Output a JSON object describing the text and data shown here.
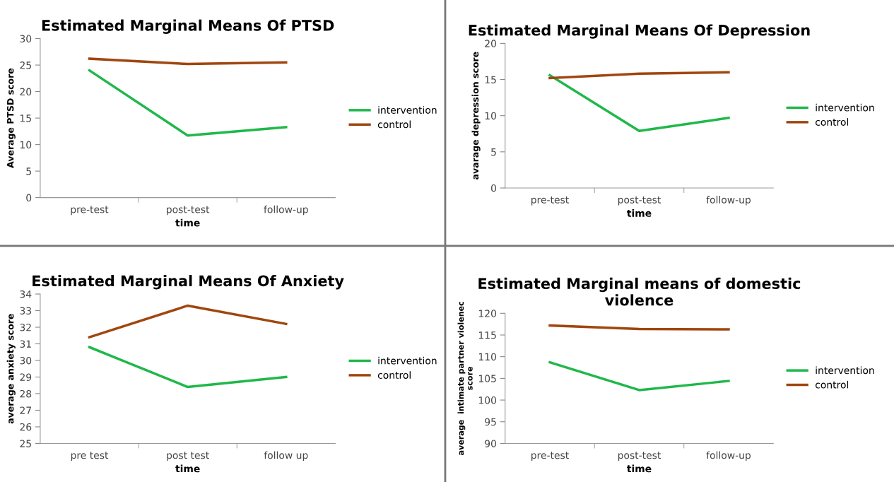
{
  "chart_data": [
    {
      "type": "line",
      "title": "Estimated Marginal Means Of PTSD",
      "xlabel": "time",
      "ylabel": "Average PTSD score",
      "categories": [
        "pre-test",
        "post-test",
        "follow-up"
      ],
      "ylim": [
        0,
        30
      ],
      "yticks": [
        0,
        5,
        10,
        15,
        20,
        25,
        30
      ],
      "legend": "right",
      "grid": false,
      "series": [
        {
          "name": "intervention",
          "color": "#1fb84a",
          "values": [
            24.0,
            11.7,
            13.3
          ]
        },
        {
          "name": "control",
          "color": "#a0460f",
          "values": [
            26.2,
            25.2,
            25.5
          ]
        }
      ]
    },
    {
      "type": "line",
      "title": "Estimated Marginal Means Of Depression",
      "xlabel": "time",
      "ylabel": "avarage depression score",
      "categories": [
        "pre-test",
        "post-test",
        "follow-up"
      ],
      "ylim": [
        0,
        20
      ],
      "yticks": [
        0,
        5,
        10,
        15,
        20
      ],
      "legend": "right",
      "grid": false,
      "series": [
        {
          "name": "intervention",
          "color": "#1fb84a",
          "values": [
            15.6,
            7.9,
            9.7
          ]
        },
        {
          "name": "control",
          "color": "#a0460f",
          "values": [
            15.2,
            15.8,
            16.0
          ]
        }
      ]
    },
    {
      "type": "line",
      "title": "Estimated Marginal Means Of Anxiety",
      "xlabel": "time",
      "ylabel": "average anxiety score",
      "categories": [
        "pre test",
        "post test",
        "follow up"
      ],
      "ylim": [
        25,
        34
      ],
      "yticks": [
        25,
        26,
        27,
        28,
        29,
        30,
        31,
        32,
        33,
        34
      ],
      "legend": "right",
      "grid": false,
      "series": [
        {
          "name": "intervention",
          "color": "#1fb84a",
          "values": [
            30.8,
            28.4,
            29.0
          ]
        },
        {
          "name": "control",
          "color": "#a0460f",
          "values": [
            31.4,
            33.3,
            32.2
          ]
        }
      ]
    },
    {
      "type": "line",
      "title": "Estimated Marginal means of domestic violence",
      "xlabel": "time",
      "ylabel": "average  intimate partner violenec score",
      "categories": [
        "pre-test",
        "post-test",
        "follow-up"
      ],
      "ylim": [
        90,
        120
      ],
      "yticks": [
        90,
        95,
        100,
        105,
        110,
        115,
        120
      ],
      "legend": "right",
      "grid": false,
      "series": [
        {
          "name": "intervention",
          "color": "#1fb84a",
          "values": [
            108.7,
            102.3,
            104.4
          ]
        },
        {
          "name": "control",
          "color": "#a0460f",
          "values": [
            117.2,
            116.4,
            116.3
          ]
        }
      ]
    }
  ]
}
